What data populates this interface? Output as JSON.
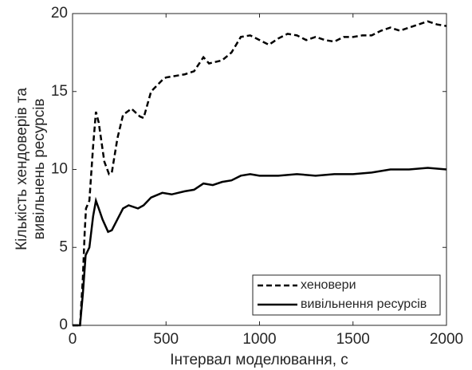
{
  "chart_data": {
    "type": "line",
    "xlabel": "Інтервал моделювання, с",
    "ylabel": [
      "Кількість хендоверів та",
      "вивільнень ресурсів"
    ],
    "xlim": [
      0,
      2000
    ],
    "xticks": [
      0,
      500,
      1000,
      1500,
      2000
    ],
    "ylim": [
      0,
      20
    ],
    "yticks": [
      0,
      5,
      10,
      15,
      20
    ],
    "grid": false,
    "legend": "lower right",
    "series": [
      {
        "name": "хеновери",
        "color": "#000000",
        "dash": true,
        "x": [
          0,
          40,
          55,
          65,
          72,
          90,
          110,
          125,
          140,
          170,
          195,
          210,
          240,
          270,
          315,
          360,
          380,
          420,
          485,
          500,
          600,
          650,
          700,
          730,
          800,
          850,
          900,
          950,
          1000,
          1050,
          1100,
          1150,
          1200,
          1250,
          1300,
          1350,
          1400,
          1450,
          1500,
          1550,
          1600,
          1650,
          1700,
          1750,
          1800,
          1850,
          1900,
          1950,
          2000
        ],
        "values": [
          0,
          0,
          3,
          6,
          7.5,
          8,
          11.5,
          13.7,
          13,
          10.5,
          9.7,
          9.8,
          12,
          13.5,
          13.9,
          13.4,
          13.3,
          15,
          15.8,
          15.9,
          16.1,
          16.3,
          17.2,
          16.8,
          17.0,
          17.5,
          18.5,
          18.6,
          18.3,
          18.0,
          18.4,
          18.7,
          18.6,
          18.3,
          18.5,
          18.3,
          18.2,
          18.5,
          18.5,
          18.6,
          18.6,
          18.9,
          19.1,
          18.9,
          19.1,
          19.3,
          19.5,
          19.3,
          19.2
        ]
      },
      {
        "name": "вивільнення ресурсів",
        "color": "#000000",
        "dash": false,
        "x": [
          0,
          40,
          55,
          70,
          90,
          110,
          125,
          140,
          160,
          190,
          210,
          240,
          270,
          300,
          350,
          380,
          420,
          480,
          530,
          600,
          650,
          700,
          750,
          800,
          850,
          900,
          950,
          1000,
          1100,
          1200,
          1300,
          1400,
          1500,
          1600,
          1700,
          1800,
          1900,
          2000
        ],
        "values": [
          0,
          0,
          2,
          4.5,
          5.0,
          7.0,
          8.0,
          7.5,
          6.8,
          6.0,
          6.1,
          6.8,
          7.5,
          7.7,
          7.5,
          7.7,
          8.2,
          8.5,
          8.4,
          8.6,
          8.7,
          9.1,
          9.0,
          9.2,
          9.3,
          9.6,
          9.7,
          9.6,
          9.6,
          9.7,
          9.6,
          9.7,
          9.7,
          9.8,
          10.0,
          10.0,
          10.1,
          10.0
        ]
      }
    ]
  }
}
